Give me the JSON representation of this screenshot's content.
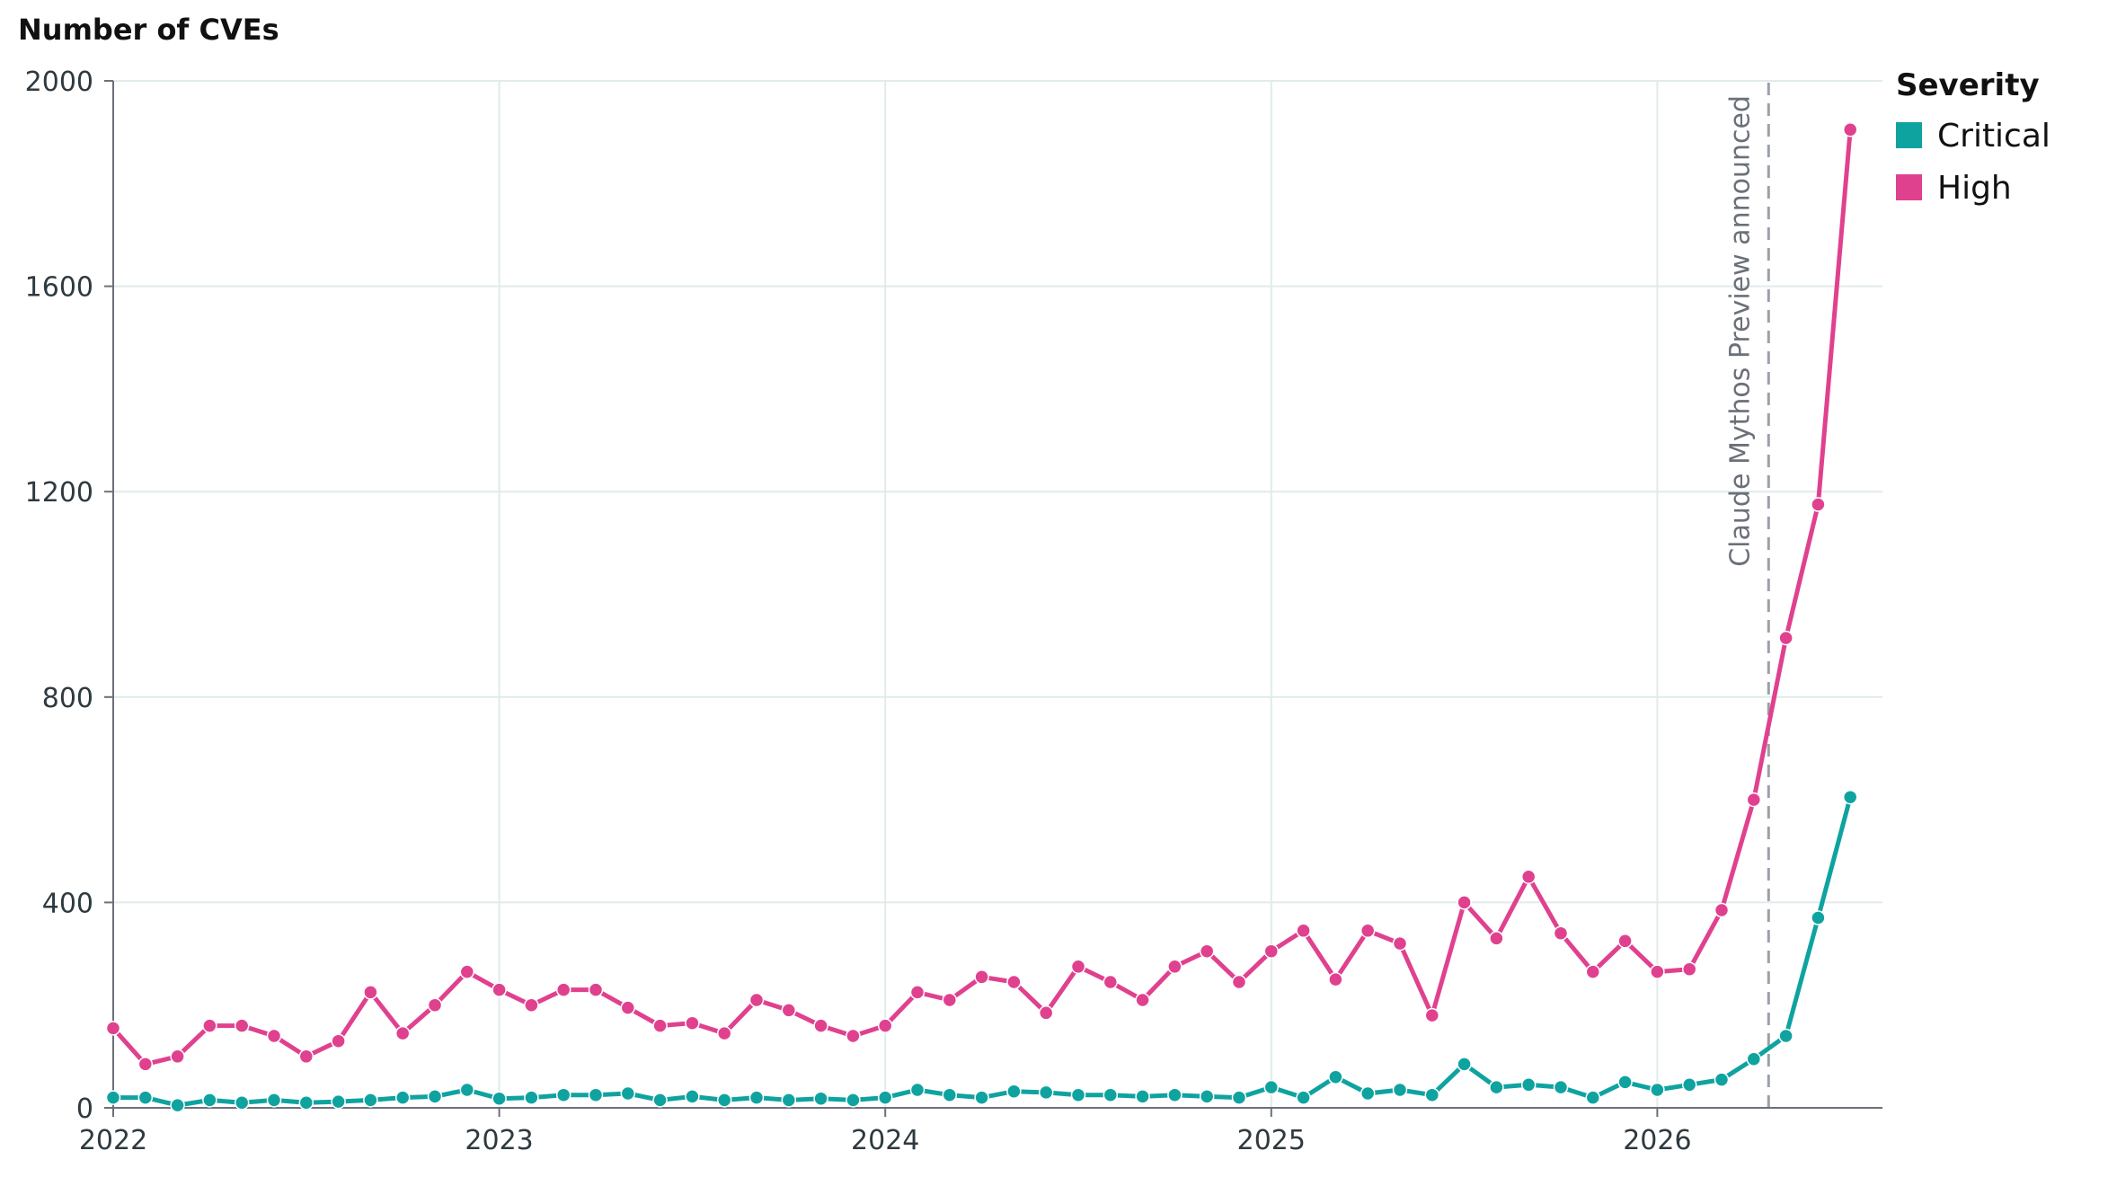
{
  "chart_data": {
    "type": "line",
    "title": "",
    "ylabel": "Number of CVEs",
    "xlabel": "",
    "ylim": [
      0,
      2000
    ],
    "xlim": [
      "2022-01",
      "2026-08"
    ],
    "yticks": [
      0,
      400,
      800,
      1200,
      1600,
      2000
    ],
    "xticks": [
      "2022",
      "2023",
      "2024",
      "2025",
      "2026"
    ],
    "grid": true,
    "legend": {
      "title": "Severity",
      "position": "top-right"
    },
    "annotation": {
      "x": "2026-04-15",
      "label": "Claude Mythos Preview announced",
      "style": "dashed-vertical"
    },
    "x": [
      "2022-01",
      "2022-02",
      "2022-03",
      "2022-04",
      "2022-05",
      "2022-06",
      "2022-07",
      "2022-08",
      "2022-09",
      "2022-10",
      "2022-11",
      "2022-12",
      "2023-01",
      "2023-02",
      "2023-03",
      "2023-04",
      "2023-05",
      "2023-06",
      "2023-07",
      "2023-08",
      "2023-09",
      "2023-10",
      "2023-11",
      "2023-12",
      "2024-01",
      "2024-02",
      "2024-03",
      "2024-04",
      "2024-05",
      "2024-06",
      "2024-07",
      "2024-08",
      "2024-09",
      "2024-10",
      "2024-11",
      "2024-12",
      "2025-01",
      "2025-02",
      "2025-03",
      "2025-04",
      "2025-05",
      "2025-06",
      "2025-07",
      "2025-08",
      "2025-09",
      "2025-10",
      "2025-11",
      "2025-12",
      "2026-01",
      "2026-02",
      "2026-03",
      "2026-04",
      "2026-05",
      "2026-06",
      "2026-07"
    ],
    "series": [
      {
        "name": "Critical",
        "color": "#0fa3a0",
        "values": [
          20,
          20,
          5,
          15,
          10,
          15,
          10,
          12,
          15,
          20,
          22,
          35,
          18,
          20,
          25,
          25,
          28,
          15,
          22,
          15,
          20,
          15,
          18,
          15,
          20,
          35,
          25,
          20,
          32,
          30,
          25,
          25,
          22,
          25,
          22,
          20,
          40,
          20,
          60,
          28,
          35,
          25,
          85,
          40,
          45,
          40,
          20,
          50,
          35,
          45,
          55,
          95,
          140,
          370,
          605
        ]
      },
      {
        "name": "High",
        "color": "#e0418f",
        "values": [
          155,
          85,
          100,
          160,
          160,
          140,
          100,
          130,
          225,
          145,
          200,
          265,
          230,
          200,
          230,
          230,
          195,
          160,
          165,
          145,
          210,
          190,
          160,
          140,
          160,
          225,
          210,
          255,
          245,
          185,
          275,
          245,
          210,
          275,
          305,
          245,
          305,
          345,
          250,
          345,
          320,
          180,
          400,
          330,
          450,
          340,
          265,
          325,
          265,
          270,
          385,
          600,
          915,
          1175,
          1905
        ]
      }
    ]
  }
}
